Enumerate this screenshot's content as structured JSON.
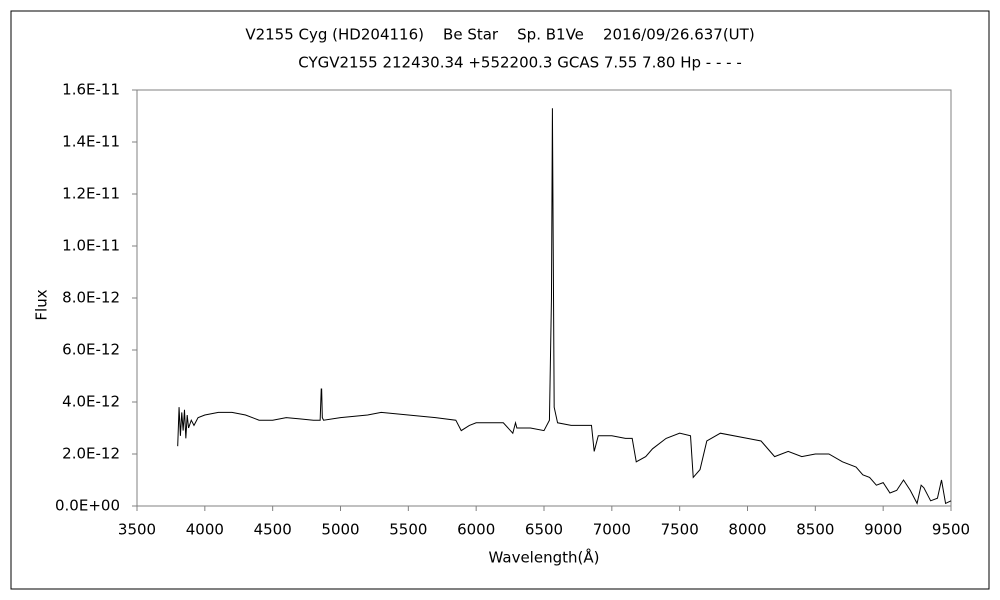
{
  "chart_data": {
    "type": "line",
    "title": "V2155 Cyg (HD204116)    Be Star    Sp. B1Ve    2016/09/26.637(UT)",
    "subtitle": "CYGV2155 212430.34 +552200.3 GCAS 7.55 7.80 Hp - - - -",
    "x_label": "Wavelength(Å)",
    "y_label": "Flux",
    "grid": false,
    "xlim": [
      3500,
      9500
    ],
    "xticks": [
      3500,
      4000,
      4500,
      5000,
      5500,
      6000,
      6500,
      7000,
      7500,
      8000,
      8500,
      9000,
      9500
    ],
    "ylim": [
      0,
      1.6e-11
    ],
    "yticks": [
      {
        "value": 0,
        "label": "0.0E+00"
      },
      {
        "value": 2e-12,
        "label": "2.0E-12"
      },
      {
        "value": 4e-12,
        "label": "4.0E-12"
      },
      {
        "value": 6e-12,
        "label": "6.0E-12"
      },
      {
        "value": 8e-12,
        "label": "8.0E-12"
      },
      {
        "value": 1e-11,
        "label": "1.0E-11"
      },
      {
        "value": 1.2e-11,
        "label": "1.2E-11"
      },
      {
        "value": 1.4e-11,
        "label": "1.4E-11"
      },
      {
        "value": 1.6e-11,
        "label": "1.6E-11"
      }
    ],
    "series": [
      {
        "color": "#000000",
        "x": [
          3800,
          3810,
          3820,
          3830,
          3840,
          3850,
          3860,
          3870,
          3880,
          3900,
          3920,
          3950,
          4000,
          4100,
          4200,
          4300,
          4400,
          4500,
          4600,
          4700,
          4800,
          4850,
          4858,
          4861,
          4866,
          4875,
          5000,
          5200,
          5300,
          5500,
          5700,
          5850,
          5890,
          5950,
          6000,
          6200,
          6270,
          6290,
          6300,
          6400,
          6500,
          6540,
          6555,
          6562,
          6568,
          6575,
          6600,
          6700,
          6850,
          6870,
          6900,
          7000,
          7100,
          7150,
          7180,
          7250,
          7300,
          7400,
          7500,
          7580,
          7600,
          7650,
          7700,
          7800,
          8000,
          8100,
          8200,
          8300,
          8400,
          8500,
          8600,
          8700,
          8800,
          8850,
          8900,
          8950,
          9000,
          9050,
          9100,
          9150,
          9200,
          9250,
          9280,
          9300,
          9350,
          9400,
          9430,
          9460,
          9500
        ],
        "values": [
          2.3e-12,
          3.8e-12,
          2.7e-12,
          3.6e-12,
          2.9e-12,
          3.7e-12,
          2.6e-12,
          3.5e-12,
          3e-12,
          3.3e-12,
          3.1e-12,
          3.4e-12,
          3.5e-12,
          3.6e-12,
          3.6e-12,
          3.5e-12,
          3.3e-12,
          3.3e-12,
          3.4e-12,
          3.35e-12,
          3.3e-12,
          3.3e-12,
          4.5e-12,
          4.5e-12,
          3.4e-12,
          3.3e-12,
          3.4e-12,
          3.5e-12,
          3.6e-12,
          3.5e-12,
          3.4e-12,
          3.3e-12,
          2.9e-12,
          3.1e-12,
          3.2e-12,
          3.2e-12,
          2.8e-12,
          3.2e-12,
          3e-12,
          3e-12,
          2.9e-12,
          3.3e-12,
          8e-12,
          1.53e-11,
          9.9e-12,
          3.8e-12,
          3.2e-12,
          3.1e-12,
          3.1e-12,
          2.1e-12,
          2.7e-12,
          2.7e-12,
          2.6e-12,
          2.6e-12,
          1.7e-12,
          1.9e-12,
          2.2e-12,
          2.6e-12,
          2.8e-12,
          2.7e-12,
          1.1e-12,
          1.4e-12,
          2.5e-12,
          2.8e-12,
          2.6e-12,
          2.5e-12,
          1.9e-12,
          2.1e-12,
          1.9e-12,
          2e-12,
          2e-12,
          1.7e-12,
          1.5e-12,
          1.2e-12,
          1.1e-12,
          8e-13,
          9e-13,
          5e-13,
          6e-13,
          1e-12,
          6e-13,
          1e-13,
          8e-13,
          7e-13,
          2e-13,
          3e-13,
          1e-12,
          1e-13,
          2e-13
        ]
      }
    ]
  }
}
